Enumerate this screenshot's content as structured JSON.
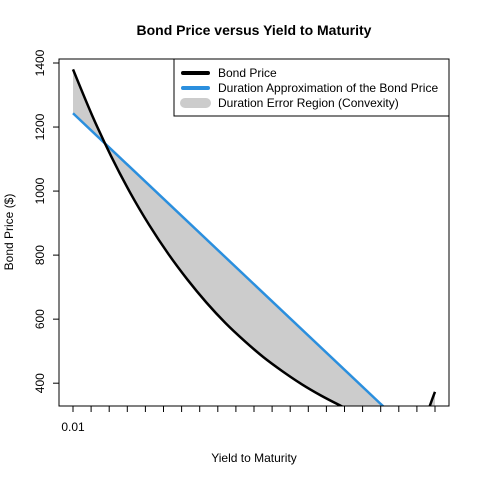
{
  "chart_data": {
    "type": "line",
    "title": "Bond Price versus Yield to Maturity",
    "xlabel": "Yield to Maturity",
    "ylabel": "Bond Price ($)",
    "xlim": [
      0.01,
      0.2
    ],
    "ylim": [
      335,
      1400
    ],
    "x_tick_labels": [
      "0.01"
    ],
    "x_tick_count": 21,
    "y_ticks": [
      400,
      600,
      800,
      1000,
      1200,
      1400
    ],
    "grid": false,
    "legend_position": "top-right",
    "series": [
      {
        "name": "Bond Price",
        "color": "#000000",
        "x": [
          0.01,
          0.02,
          0.03,
          0.04,
          0.05,
          0.06,
          0.07,
          0.08,
          0.09,
          0.1,
          0.11,
          0.12,
          0.13,
          0.14,
          0.15,
          0.16,
          0.17,
          0.18,
          0.19,
          0.2
        ],
        "y": [
          1380,
          1237,
          1109,
          995,
          894,
          804,
          724,
          652,
          588,
          532,
          481,
          437,
          397,
          362,
          331,
          302,
          278,
          255,
          235,
          373
        ]
      },
      {
        "name": "Duration Approximation of the Bond Price",
        "color": "#2b8fde",
        "x": [
          0.01,
          0.2
        ],
        "y": [
          1243,
          175
        ]
      },
      {
        "name": "Duration Error Region (Convexity)",
        "color": "#cccccc"
      }
    ]
  }
}
